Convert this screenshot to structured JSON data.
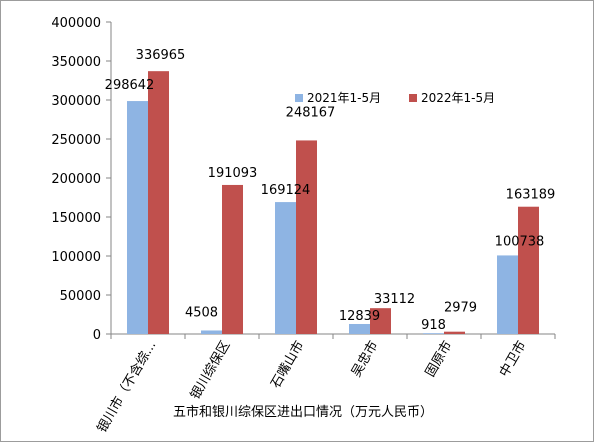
{
  "chart_data": {
    "type": "bar",
    "title": "",
    "xlabel": "五市和银川综保区进出口情况（万元人民币）",
    "ylabel": "",
    "ylim": [
      0,
      400000
    ],
    "yticks": [
      "0",
      "50000",
      "100000",
      "150000",
      "200000",
      "250000",
      "300000",
      "350000",
      "400000"
    ],
    "categories": [
      "银川市（不含综...",
      "银川综保区",
      "石嘴山市",
      "吴忠市",
      "固原市",
      "中卫市"
    ],
    "series": [
      {
        "name": "2021年1-5月",
        "color": "#8eb4e3",
        "values": [
          298642,
          4508,
          169124,
          12839,
          918,
          100738
        ]
      },
      {
        "name": "2022年1-5月",
        "color": "#c0504d",
        "values": [
          336965,
          191093,
          248167,
          33112,
          2979,
          163189
        ]
      }
    ],
    "grid": false,
    "legend_position": "upper-right inside plot"
  }
}
